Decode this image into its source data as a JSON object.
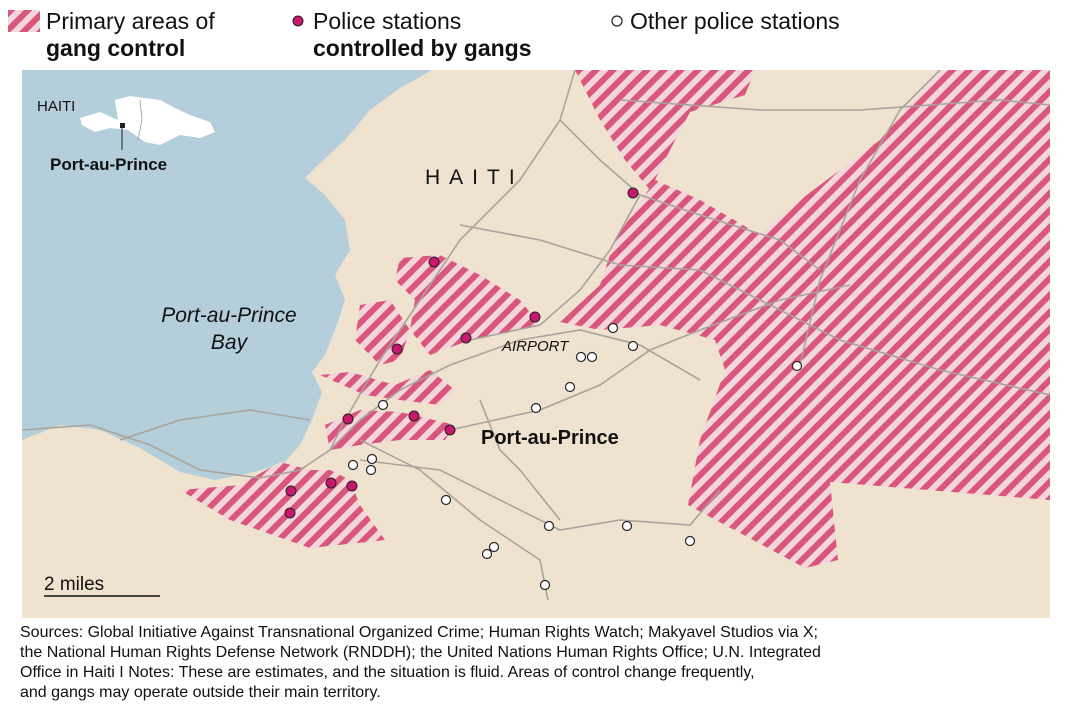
{
  "legend": [
    {
      "lines": [
        "Primary areas of",
        "gang control"
      ]
    },
    {
      "lines": [
        "Police stations",
        "controlled by gangs"
      ]
    },
    {
      "lines": [
        "Other police stations"
      ]
    }
  ],
  "inset": {
    "country": "HAITI",
    "city": "Port-au-Prince"
  },
  "labels": {
    "country": "HAITI",
    "bay": [
      "Port-au-Prince",
      "Bay"
    ],
    "airport": "AIRPORT",
    "city": "Port-au-Prince"
  },
  "scale": "2 miles",
  "sources": [
    "Sources: Global Initiative Against Transnational Organized Crime; Human Rights Watch; Makyavel Studios via X;",
    "the National Human Rights Defense Network (RNDDH); the United Nations Human Rights Office; U.N. Integrated",
    "Office in Haiti I Notes: These are estimates, and the situation is fluid. Areas of control change frequently,",
    "and gangs may operate outside their main territory."
  ]
}
